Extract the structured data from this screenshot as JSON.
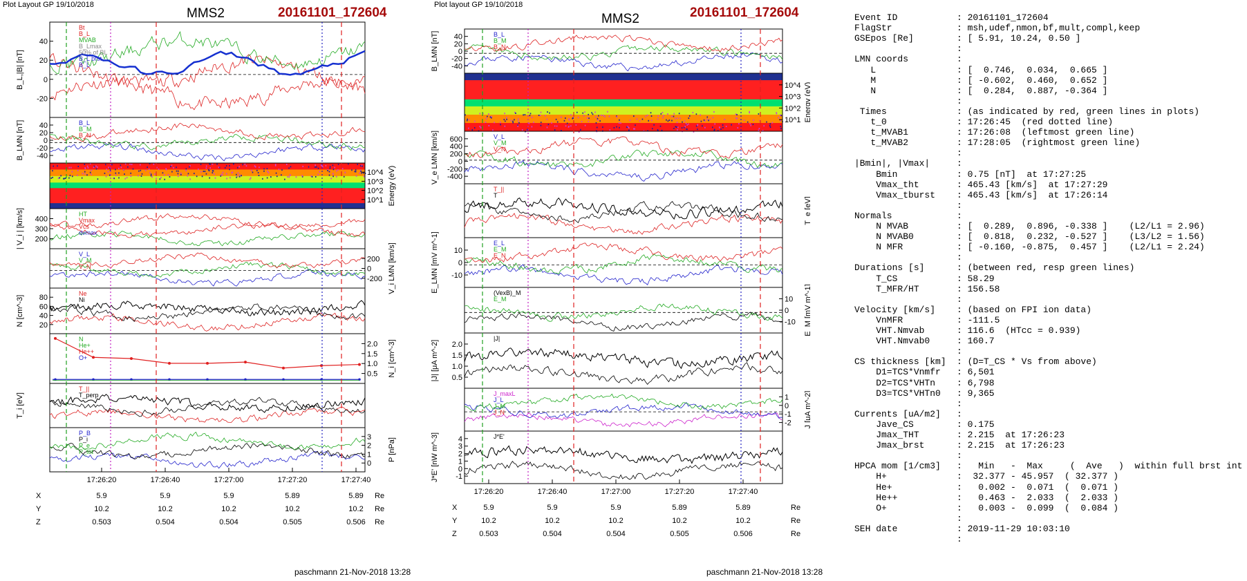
{
  "left": {
    "plot_layout": "Plot Layout GP 19/10/2018",
    "spacecraft": "MMS2",
    "event": "20161101_172604",
    "footer": "paschmann 21-Nov-2018 13:28",
    "time_ticks": [
      "17:26:20",
      "17:26:40",
      "17:27:00",
      "17:27:20",
      "17:27:40"
    ],
    "coords": {
      "x_label": "X",
      "y_label": "Y",
      "z_label": "Z",
      "unit": "Re",
      "x": [
        "5.9",
        "5.9",
        "5.9",
        "5.89",
        "5.89"
      ],
      "y": [
        "10.2",
        "10.2",
        "10.2",
        "10.2",
        "10.2"
      ],
      "z": [
        "0.503",
        "0.504",
        "0.504",
        "0.505",
        "0.506"
      ]
    },
    "panels": [
      {
        "id": "bl",
        "ylabel": "B_L,|B| [nT]",
        "side": "left",
        "ticks": [
          "40",
          "20",
          "0",
          "-20"
        ],
        "legend": [
          "Bt",
          "B_L",
          "MVAB",
          "B_Lmax",
          "50% of BL",
          "B_L brst",
          "B_L"
        ],
        "legend_colors": [
          "#d22",
          "#d22",
          "#2a2",
          "#888",
          "#888",
          "#33c",
          "#33c"
        ]
      },
      {
        "id": "blmn",
        "ylabel": "B_LMN [nT]",
        "side": "left",
        "ticks": [
          "40",
          "20",
          "0",
          "-20",
          "-40"
        ],
        "legend": [
          "B_L",
          "B_M",
          "B_N"
        ],
        "legend_colors": [
          "#22c",
          "#2a2",
          "#d22"
        ]
      },
      {
        "id": "spec",
        "ylabel": "Energy (eV)",
        "side": "right",
        "ticks": [
          "10^4",
          "10^3",
          "10^2",
          "10^1"
        ],
        "legend": [],
        "legend_colors": []
      },
      {
        "id": "vi",
        "ylabel": "| V_i | [km/s]",
        "side": "left",
        "ticks": [
          "400",
          "300",
          "200"
        ],
        "legend": [
          "HT",
          "Vmax",
          "Vcs",
          "dvmax"
        ],
        "legend_colors": [
          "#2a2",
          "#d22",
          "#d22",
          "#33c"
        ]
      },
      {
        "id": "vlmn",
        "ylabel": "V_i LMN [km/s]",
        "side": "right",
        "ticks": [
          "200",
          "0",
          "-200"
        ],
        "legend": [
          "V_L",
          "V_M",
          "V_N"
        ],
        "legend_colors": [
          "#22c",
          "#2a2",
          "#d22"
        ]
      },
      {
        "id": "n",
        "ylabel": "N [cm^-3]",
        "side": "left",
        "ticks": [
          "80",
          "60",
          "40",
          "20"
        ],
        "legend": [
          "Ne",
          "Ni"
        ],
        "legend_colors": [
          "#d22",
          "#000"
        ]
      },
      {
        "id": "nh",
        "ylabel": "N_i [cm^-3]",
        "side": "right",
        "ticks": [
          "2.0",
          "1.5",
          "1.0",
          "0.5"
        ],
        "legend": [
          "N",
          "He+",
          "He++",
          "O+"
        ],
        "legend_colors": [
          "#2a2",
          "#2a2",
          "#d22",
          "#22c"
        ]
      },
      {
        "id": "ti",
        "ylabel": "T_i [eV]",
        "side": "left",
        "ticks": [],
        "legend": [
          "T_||",
          "T_perp"
        ],
        "legend_colors": [
          "#d22",
          "#000"
        ]
      },
      {
        "id": "p",
        "ylabel": "P [nPa]",
        "side": "right",
        "ticks": [
          "3",
          "2",
          "1",
          "0"
        ],
        "legend": [
          "P_B",
          "P_i",
          "P_e",
          "P_tot"
        ],
        "legend_colors": [
          "#22c",
          "#000",
          "#2a2",
          "#2a2"
        ]
      }
    ]
  },
  "mid": {
    "plot_layout": "Plot layout GP 19/10/2018",
    "spacecraft": "MMS2",
    "event": "20161101_172604",
    "footer": "paschmann 21-Nov-2018 13:28",
    "time_ticks": [
      "17:26:20",
      "17:26:40",
      "17:27:00",
      "17:27:20",
      "17:27:40"
    ],
    "coords": {
      "x_label": "X",
      "y_label": "Y",
      "z_label": "Z",
      "unit": "Re",
      "x": [
        "5.9",
        "5.9",
        "5.9",
        "5.89",
        "5.89"
      ],
      "y": [
        "10.2",
        "10.2",
        "10.2",
        "10.2",
        "10.2"
      ],
      "z": [
        "0.503",
        "0.504",
        "0.504",
        "0.505",
        "0.506"
      ]
    },
    "panels": [
      {
        "id": "blmn",
        "ylabel": "B_LMN [nT]",
        "side": "left",
        "ticks": [
          "40",
          "20",
          "0",
          "-20",
          "-40"
        ],
        "legend": [
          "B_L",
          "B_M",
          "B_N"
        ],
        "legend_colors": [
          "#22c",
          "#2a2",
          "#d22"
        ]
      },
      {
        "id": "spec",
        "ylabel": "Energy (eV)",
        "side": "right",
        "ticks": [
          "10^4",
          "10^3",
          "10^2",
          "10^1"
        ],
        "legend": [],
        "legend_colors": []
      },
      {
        "id": "velmn",
        "ylabel": "V_e LMN [km/s]",
        "side": "left",
        "ticks": [
          "600",
          "400",
          "200",
          "0",
          "-200",
          "-400"
        ],
        "legend": [
          "V_L",
          "V_M",
          "V_N"
        ],
        "legend_colors": [
          "#22c",
          "#2a2",
          "#d22"
        ]
      },
      {
        "id": "te",
        "ylabel": "T_e [eV]",
        "side": "right",
        "ticks": [],
        "legend": [
          "T_||",
          "T"
        ],
        "legend_colors": [
          "#d22",
          "#000"
        ]
      },
      {
        "id": "elmn",
        "ylabel": "E_LMN [mV m^-1]",
        "side": "left",
        "ticks": [
          "10",
          "0",
          "-10"
        ],
        "legend": [
          "E_L",
          "E_M",
          "E_N"
        ],
        "legend_colors": [
          "#22c",
          "#2a2",
          "#d22"
        ]
      },
      {
        "id": "em",
        "ylabel": "E_M [mV m^-1]",
        "side": "right",
        "ticks": [
          "10",
          "0",
          "-10"
        ],
        "legend": [
          "(VexB)_M",
          "E_M"
        ],
        "legend_colors": [
          "#000",
          "#2a2"
        ]
      },
      {
        "id": "j",
        "ylabel": "|J| [μA m^-2]",
        "side": "left",
        "ticks": [
          "2.0",
          "1.5",
          "1.0",
          "0.5"
        ],
        "legend": [
          "|J|"
        ],
        "legend_colors": [
          "#000"
        ]
      },
      {
        "id": "jlmn",
        "ylabel": "J [μA m^-2]",
        "side": "right",
        "ticks": [
          "1",
          "0",
          "-1",
          "-2"
        ],
        "legend": [
          "J_maxL",
          "J_L",
          "J_M",
          "J_N"
        ],
        "legend_colors": [
          "#c2c",
          "#22c",
          "#2a2",
          "#d22"
        ]
      },
      {
        "id": "je",
        "ylabel": "J*E' [nW m^-3]",
        "side": "left",
        "ticks": [
          "4",
          "3",
          "2",
          "1",
          "0",
          "-1"
        ],
        "legend": [
          "J*E'"
        ],
        "legend_colors": [
          "#000"
        ]
      }
    ]
  },
  "summary": [
    {
      "k": "Event ID",
      "v": "20161101_172604"
    },
    {
      "k": "FlagStr",
      "v": "msh,udef,nmon,bf,mult,compl,keep"
    },
    {
      "k": "GSEpos [Re]",
      "v": "[ 5.91, 10.24, 0.50 ]"
    },
    {
      "k": "",
      "v": ""
    },
    {
      "k": "LMN coords",
      "v": ""
    },
    {
      "k": "   L",
      "v": "[  0.746,  0.034,  0.665 ]"
    },
    {
      "k": "   M",
      "v": "[ -0.602,  0.460,  0.652 ]"
    },
    {
      "k": "   N",
      "v": "[  0.284,  0.887, -0.364 ]"
    },
    {
      "k": "",
      "v": ""
    },
    {
      "k": " Times",
      "v": "(as indicated by red, green lines in plots)"
    },
    {
      "k": "   t_0",
      "v": "17:26:45  (red dotted line)"
    },
    {
      "k": "   t_MVAB1",
      "v": "17:26:08  (leftmost green line)"
    },
    {
      "k": "   t_MVAB2",
      "v": "17:28:05  (rightmost green line)"
    },
    {
      "k": "",
      "v": ""
    },
    {
      "k": "|Bmin|, |Vmax|",
      "v": ""
    },
    {
      "k": "    Bmin",
      "v": "0.75 [nT]  at 17:27:25"
    },
    {
      "k": "    Vmax_tht",
      "v": "465.43 [km/s]  at 17:27:29"
    },
    {
      "k": "    Vmax_tburst",
      "v": "465.43 [km/s]  at 17:26:14"
    },
    {
      "k": "",
      "v": ""
    },
    {
      "k": "Normals",
      "v": ""
    },
    {
      "k": "    N MVAB",
      "v": "[  0.289,  0.896, -0.338 ]    (L2/L1 = 2.96)"
    },
    {
      "k": "    N MVAB0",
      "v": "[  0.818,  0.232, -0.527 ]    (L3/L2 = 1.56)"
    },
    {
      "k": "    N MFR",
      "v": "[ -0.160, -0.875,  0.457 ]    (L2/L1 = 2.24)"
    },
    {
      "k": "",
      "v": ""
    },
    {
      "k": "Durations [s]",
      "v": "(between red, resp green lines)"
    },
    {
      "k": "    T_CS",
      "v": "58.29"
    },
    {
      "k": "    T_MFR/HT",
      "v": "156.58"
    },
    {
      "k": "",
      "v": ""
    },
    {
      "k": "Velocity [km/s]",
      "v": "(based on FPI ion data)"
    },
    {
      "k": "    VnMFR",
      "v": "-111.5"
    },
    {
      "k": "    VHT.Nmvab",
      "v": "116.6  (HTcc = 0.939)"
    },
    {
      "k": "    VHT.Nmvab0",
      "v": "160.7"
    },
    {
      "k": "",
      "v": ""
    },
    {
      "k": "CS thickness [km]",
      "v": "(D=T_CS * Vs from above)"
    },
    {
      "k": "    D1=TCS*Vnmfr",
      "v": "6,501"
    },
    {
      "k": "    D2=TCS*VHTn",
      "v": "6,798"
    },
    {
      "k": "    D3=TCS*VHTn0",
      "v": "9,365"
    },
    {
      "k": "",
      "v": ""
    },
    {
      "k": "Currents [uA/m2]",
      "v": ""
    },
    {
      "k": "    Jave_CS",
      "v": "0.175"
    },
    {
      "k": "    Jmax_THT",
      "v": "2.215  at 17:26:23"
    },
    {
      "k": "    Jmax_brst",
      "v": "2.215  at 17:26:23"
    },
    {
      "k": "",
      "v": ""
    },
    {
      "k": "HPCA mom [1/cm3]",
      "v": "  Min   -  Max     (  Ave   )  within full brst int"
    },
    {
      "k": "    H+",
      "v": " 32.377 - 45.957  ( 32.377 )"
    },
    {
      "k": "    He+",
      "v": "  0.002 -  0.071  (  0.071 )"
    },
    {
      "k": "    He++",
      "v": "  0.463 -  2.033  (  2.033 )"
    },
    {
      "k": "    O+",
      "v": "  0.003 -  0.099  (  0.084 )"
    },
    {
      "k": "",
      "v": ""
    },
    {
      "k": "SEH date",
      "v": "2019-11-29 10:03:10"
    },
    {
      "k": "",
      "v": ""
    }
  ],
  "chart_data": [
    {
      "type": "line",
      "title": "MMS2 20161101_172604",
      "xlabel": "",
      "x_ticks": [
        "17:26:20",
        "17:26:40",
        "17:27:00",
        "17:27:20",
        "17:27:40"
      ],
      "markers": {
        "t_0": "17:26:45",
        "t_MVAB1": "17:26:08",
        "t_MVAB2": "17:28:05"
      },
      "panels": [
        {
          "ylabel": "B_L,|B| [nT]",
          "ylim": [
            -30,
            50
          ]
        },
        {
          "ylabel": "B_LMN [nT]",
          "ylim": [
            -40,
            45
          ]
        },
        {
          "ylabel": "Energy (eV)",
          "type": "heatmap"
        },
        {
          "ylabel": "| V_i | [km/s]",
          "ylim": [
            180,
            450
          ]
        },
        {
          "ylabel": "V_i LMN [km/s]",
          "ylim": [
            -300,
            300
          ]
        },
        {
          "ylabel": "N [cm^-3]",
          "ylim": [
            10,
            90
          ]
        },
        {
          "ylabel": "N_i [cm^-3]",
          "ylim": [
            0,
            2.0
          ],
          "series": [
            {
              "name": "He++",
              "values": [
                1.9,
                1.1,
                1.05,
                0.85,
                0.85,
                0.9,
                0.65,
                0.75,
                0.8
              ]
            },
            {
              "name": "O+",
              "values": [
                0.05,
                0.05,
                0.05,
                0.05,
                0.05,
                0.05,
                0.05,
                0.05,
                0.05
              ]
            }
          ]
        },
        {
          "ylabel": "T_i [eV]"
        },
        {
          "ylabel": "P [nPa]",
          "ylim": [
            0,
            3
          ]
        }
      ]
    },
    {
      "type": "line",
      "title": "MMS2 20161101_172604",
      "xlabel": "",
      "x_ticks": [
        "17:26:20",
        "17:26:40",
        "17:27:00",
        "17:27:20",
        "17:27:40"
      ],
      "panels": [
        {
          "ylabel": "B_LMN [nT]",
          "ylim": [
            -40,
            45
          ]
        },
        {
          "ylabel": "Energy (eV)",
          "type": "heatmap"
        },
        {
          "ylabel": "V_e LMN [km/s]",
          "ylim": [
            -450,
            650
          ]
        },
        {
          "ylabel": "T_e [eV]"
        },
        {
          "ylabel": "E_LMN [mV m^-1]",
          "ylim": [
            -20,
            15
          ]
        },
        {
          "ylabel": "E_M [mV m^-1]",
          "ylim": [
            -15,
            15
          ]
        },
        {
          "ylabel": "|J| [μA m^-2]",
          "ylim": [
            0.2,
            2.2
          ]
        },
        {
          "ylabel": "J [μA m^-2]",
          "ylim": [
            -2.5,
            1.5
          ]
        },
        {
          "ylabel": "J*E' [nW m^-3]",
          "ylim": [
            -1.5,
            4.2
          ]
        }
      ]
    }
  ]
}
